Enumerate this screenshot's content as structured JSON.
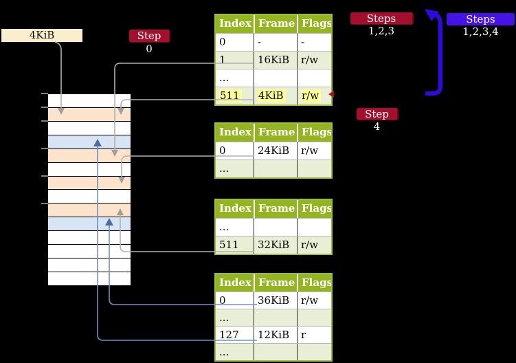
{
  "colors": {
    "background": "#000000",
    "table_header_green": "#94b421",
    "table_row_green": "#e9efd6",
    "table_border_olive": "#9fbc3e",
    "highlight_yellow": "#ffff99",
    "badge_red": "#a50f2e",
    "badge_blue": "#4513e6",
    "frame_box_beige": "#faeecd",
    "mem_peach": "#fce4cc",
    "mem_blue": "#d6e4f4",
    "connector_gray": "#b3b0ad",
    "connector_blue": "#7090c0",
    "connector_blue_head": "#4a6ba3",
    "big_arrow_blue": "#3307e0",
    "tick_gray": "#828282"
  },
  "labels": {
    "frame_box": "4KiB",
    "step0": "Step 0",
    "steps123": "Steps 1,2,3",
    "steps1234": "Steps 1,2,3,4",
    "step4": "Step 4"
  },
  "table_headers": [
    "Index",
    "Frame",
    "Flags"
  ],
  "tables": [
    {
      "rows": [
        {
          "index": "0",
          "frame": "-",
          "flags": "-",
          "shaded": false,
          "highlight": false
        },
        {
          "index": "1",
          "frame": "16KiB",
          "flags": "r/w",
          "shaded": true,
          "highlight": false
        },
        {
          "index": "...",
          "frame": "",
          "flags": "",
          "shaded": false,
          "highlight": false
        },
        {
          "index": "511",
          "frame": "4KiB",
          "flags": "r/w",
          "shaded": true,
          "highlight": true
        }
      ]
    },
    {
      "rows": [
        {
          "index": "0",
          "frame": "24KiB",
          "flags": "r/w",
          "shaded": false,
          "highlight": false
        },
        {
          "index": "...",
          "frame": "",
          "flags": "",
          "shaded": true,
          "highlight": false
        }
      ]
    },
    {
      "rows": [
        {
          "index": "...",
          "frame": "",
          "flags": "",
          "shaded": false,
          "highlight": false
        },
        {
          "index": "511",
          "frame": "32KiB",
          "flags": "r/w",
          "shaded": true,
          "highlight": false
        }
      ]
    },
    {
      "rows": [
        {
          "index": "0",
          "frame": "36KiB",
          "flags": "r/w",
          "shaded": false,
          "highlight": false
        },
        {
          "index": "...",
          "frame": "",
          "flags": "",
          "shaded": true,
          "highlight": false
        },
        {
          "index": "127",
          "frame": "12KiB",
          "flags": "r",
          "shaded": false,
          "highlight": false
        },
        {
          "index": "...",
          "frame": "",
          "flags": "",
          "shaded": true,
          "highlight": false
        }
      ]
    }
  ],
  "memory": {
    "rows": [
      "white",
      "peach",
      "white",
      "blue",
      "peach",
      "white",
      "peach",
      "white",
      "peach",
      "blue",
      "white",
      "white",
      "white",
      "white"
    ]
  }
}
